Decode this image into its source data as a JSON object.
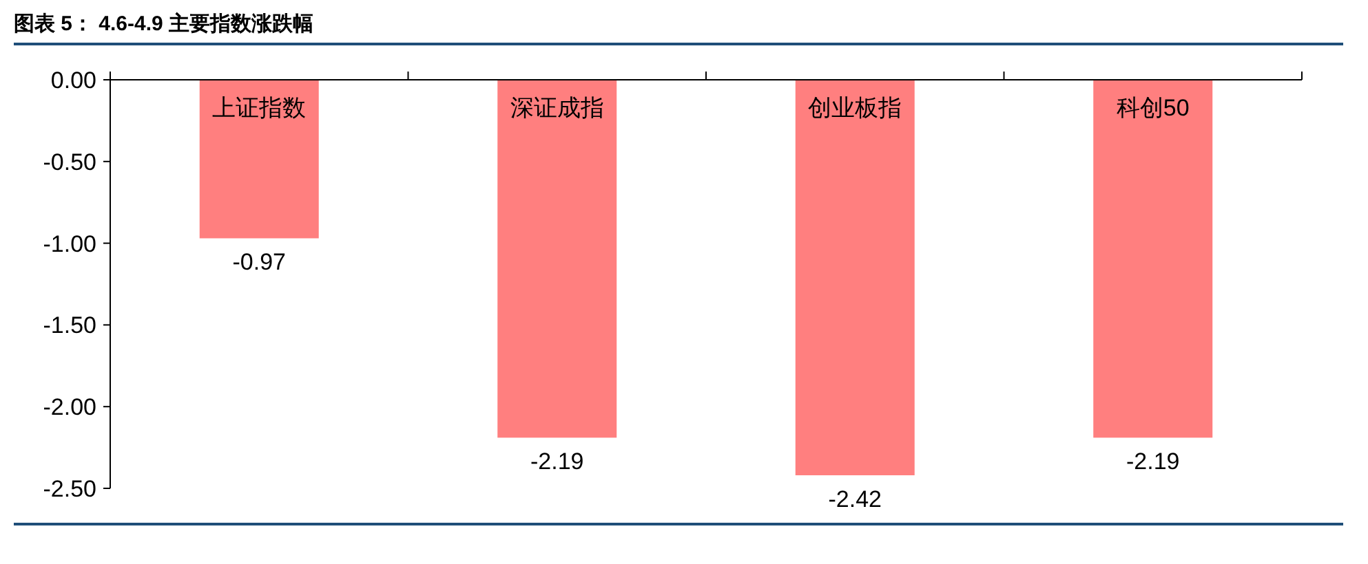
{
  "chart_data": {
    "type": "bar",
    "title": "图表 5： 4.6-4.9 主要指数涨跌幅",
    "categories": [
      "上证指数",
      "深证成指",
      "创业板指",
      "科创50"
    ],
    "values": [
      -0.97,
      -2.19,
      -2.42,
      -2.19
    ],
    "color": "#ff7f7f",
    "ylim": [
      -2.5,
      0
    ],
    "yticks": [
      {
        "value": 0,
        "label": "0.00"
      },
      {
        "value": -0.5,
        "label": "-0.50"
      },
      {
        "value": -1,
        "label": "-1.00"
      },
      {
        "value": -1.5,
        "label": "-1.50"
      },
      {
        "value": -2,
        "label": "-2.00"
      },
      {
        "value": -2.5,
        "label": "-2.50"
      }
    ],
    "grid": false,
    "data_labels": true
  }
}
